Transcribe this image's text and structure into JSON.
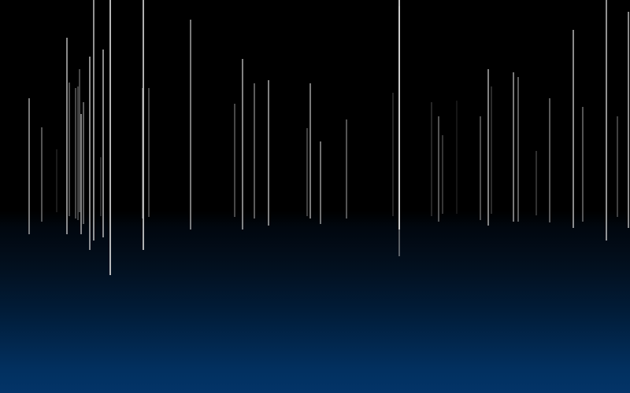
{
  "scene": {
    "subject": "light streaks",
    "colors": {
      "sky_top": "#000000",
      "horizon_dark": "#01070f",
      "ground_bottom": "#033468",
      "streak": "#d8d8d8"
    }
  }
}
